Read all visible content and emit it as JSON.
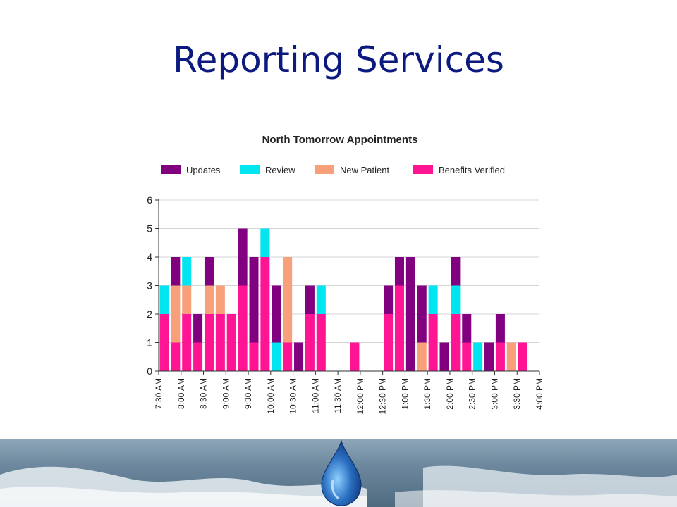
{
  "slide": {
    "title": "Reporting Services"
  },
  "chart_data": {
    "type": "bar",
    "stacked": true,
    "title": "North Tomorrow Appointments",
    "legend_position": "top",
    "grid": true,
    "ylim": [
      0,
      6
    ],
    "yticks": [
      0,
      1,
      2,
      3,
      4,
      5,
      6
    ],
    "tick_labels": [
      "7:30 AM",
      "8:00 AM",
      "8:30 AM",
      "9:00 AM",
      "9:30 AM",
      "10:00 AM",
      "10:30 AM",
      "11:00 AM",
      "11:30 AM",
      "12:00 PM",
      "12:30 PM",
      "1:00 PM",
      "1:30 PM",
      "2:00 PM",
      "2:30 PM",
      "3:00 PM",
      "3:30 PM",
      "4:00 PM"
    ],
    "categories": [
      "7:30 AM",
      "7:45 AM",
      "8:00 AM",
      "8:15 AM",
      "8:30 AM",
      "8:45 AM",
      "9:00 AM",
      "9:15 AM",
      "9:30 AM",
      "9:45 AM",
      "10:00 AM",
      "10:15 AM",
      "10:30 AM",
      "10:45 AM",
      "11:00 AM",
      "11:15 AM",
      "11:30 AM",
      "11:45 AM",
      "12:00 PM",
      "12:15 PM",
      "12:30 PM",
      "12:45 PM",
      "1:00 PM",
      "1:15 PM",
      "1:30 PM",
      "1:45 PM",
      "2:00 PM",
      "2:15 PM",
      "2:30 PM",
      "2:45 PM",
      "3:00 PM",
      "3:15 PM",
      "3:30 PM",
      "3:45 PM"
    ],
    "series": [
      {
        "name": "Benefits Verified",
        "color": "#ff1493",
        "values": [
          2,
          1,
          2,
          1,
          2,
          2,
          2,
          3,
          1,
          4,
          0,
          1,
          0,
          2,
          2,
          0,
          0,
          1,
          0,
          0,
          2,
          3,
          0,
          0,
          2,
          0,
          2,
          1,
          0,
          0,
          1,
          0,
          1,
          0
        ]
      },
      {
        "name": "New Patient",
        "color": "#f7a07a",
        "values": [
          0,
          2,
          1,
          0,
          1,
          1,
          0,
          0,
          0,
          0,
          0,
          3,
          0,
          0,
          0,
          0,
          0,
          0,
          0,
          0,
          0,
          0,
          0,
          1,
          0,
          0,
          0,
          0,
          0,
          0,
          0,
          1,
          0,
          0
        ]
      },
      {
        "name": "Review",
        "color": "#00e5f0",
        "values": [
          1,
          0,
          1,
          0,
          0,
          0,
          0,
          0,
          0,
          1,
          1,
          0,
          0,
          0,
          1,
          0,
          0,
          0,
          0,
          0,
          0,
          0,
          0,
          0,
          1,
          0,
          1,
          0,
          1,
          0,
          0,
          0,
          0,
          0
        ]
      },
      {
        "name": "Updates",
        "color": "#800080",
        "values": [
          0,
          1,
          0,
          1,
          1,
          0,
          0,
          2,
          3,
          0,
          2,
          0,
          1,
          1,
          0,
          0,
          0,
          0,
          0,
          0,
          1,
          1,
          4,
          2,
          0,
          1,
          1,
          1,
          0,
          1,
          1,
          0,
          0,
          0
        ]
      }
    ],
    "legend_order": [
      "Updates",
      "Review",
      "New Patient",
      "Benefits Verified"
    ]
  }
}
